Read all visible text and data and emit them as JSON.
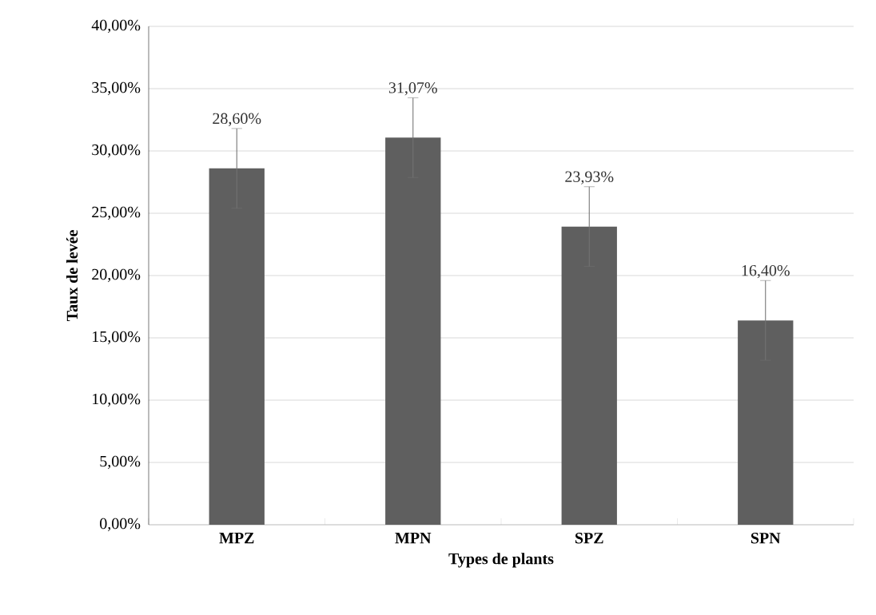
{
  "chart_data": {
    "type": "bar",
    "xlabel": "Types de plants",
    "ylabel": "Taux de levée",
    "categories": [
      "MPZ",
      "MPN",
      "SPZ",
      "SPN"
    ],
    "values": [
      28.6,
      31.07,
      23.93,
      16.4
    ],
    "value_labels": [
      "28,60%",
      "31,07%",
      "23,93%",
      "16,40%"
    ],
    "errors": [
      3.2,
      3.2,
      3.2,
      3.2
    ],
    "color": "#5f5f5f",
    "ylim": [
      0,
      40
    ],
    "yticks": [
      {
        "value": 0,
        "label": "0,00%"
      },
      {
        "value": 5,
        "label": "5,00%"
      },
      {
        "value": 10,
        "label": "10,00%"
      },
      {
        "value": 15,
        "label": "15,00%"
      },
      {
        "value": 20,
        "label": "20,00%"
      },
      {
        "value": 25,
        "label": "25,00%"
      },
      {
        "value": 30,
        "label": "30,00%"
      },
      {
        "value": 35,
        "label": "35,00%"
      },
      {
        "value": 40,
        "label": "40,00%"
      }
    ],
    "grid": "y"
  }
}
